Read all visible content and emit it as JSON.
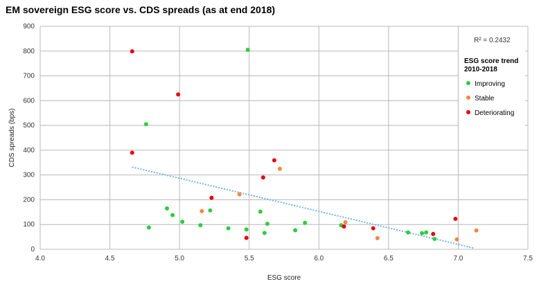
{
  "chart_data": {
    "type": "scatter",
    "title": "EM sovereign ESG score vs. CDS spreads (as at end 2018)",
    "xlabel": "ESG score",
    "ylabel": "CDS spreads (bps)",
    "xlim": [
      4.0,
      7.5
    ],
    "ylim": [
      0,
      900
    ],
    "x_ticks": [
      "4.0",
      "4.5",
      "5.0",
      "5.5",
      "6.0",
      "6.5",
      "7.0",
      "7.5"
    ],
    "y_ticks": [
      "0",
      "100",
      "200",
      "300",
      "400",
      "500",
      "600",
      "700",
      "800",
      "900"
    ],
    "x_tick_values": [
      4.0,
      4.5,
      5.0,
      5.5,
      6.0,
      6.5,
      7.0,
      7.5
    ],
    "y_tick_values": [
      0,
      100,
      200,
      300,
      400,
      500,
      600,
      700,
      800,
      900
    ],
    "grid": true,
    "legend_title": [
      "ESG score trend",
      "2010-2018"
    ],
    "legend_placement": "right",
    "r_squared_label": "R² = 0.2432",
    "trendline": {
      "x": [
        4.66,
        7.11
      ],
      "y": [
        332,
        5
      ],
      "color": "#6fb3e0"
    },
    "series": [
      {
        "name": "Improving",
        "color": "#2ecc40",
        "x": [
          4.76,
          4.78,
          4.91,
          4.95,
          5.02,
          5.15,
          5.22,
          5.35,
          5.48,
          5.49,
          5.58,
          5.61,
          5.63,
          5.83,
          5.9,
          6.16,
          6.64,
          6.74,
          6.77,
          6.83
        ],
        "y": [
          505,
          88,
          165,
          138,
          111,
          97,
          157,
          85,
          80,
          805,
          152,
          66,
          103,
          77,
          107,
          97,
          68,
          65,
          68,
          42
        ]
      },
      {
        "name": "Stable",
        "color": "#f0883e",
        "x": [
          5.16,
          5.43,
          5.72,
          6.19,
          6.42,
          6.99,
          7.13
        ],
        "y": [
          154,
          222,
          325,
          109,
          45,
          40,
          76
        ]
      },
      {
        "name": "Deteriorating",
        "color": "#e8000b",
        "x": [
          4.66,
          4.66,
          4.99,
          5.23,
          5.48,
          5.6,
          5.68,
          6.18,
          6.39,
          6.82,
          6.98
        ],
        "y": [
          799,
          390,
          625,
          208,
          46,
          290,
          359,
          92,
          85,
          62,
          123
        ]
      }
    ]
  }
}
